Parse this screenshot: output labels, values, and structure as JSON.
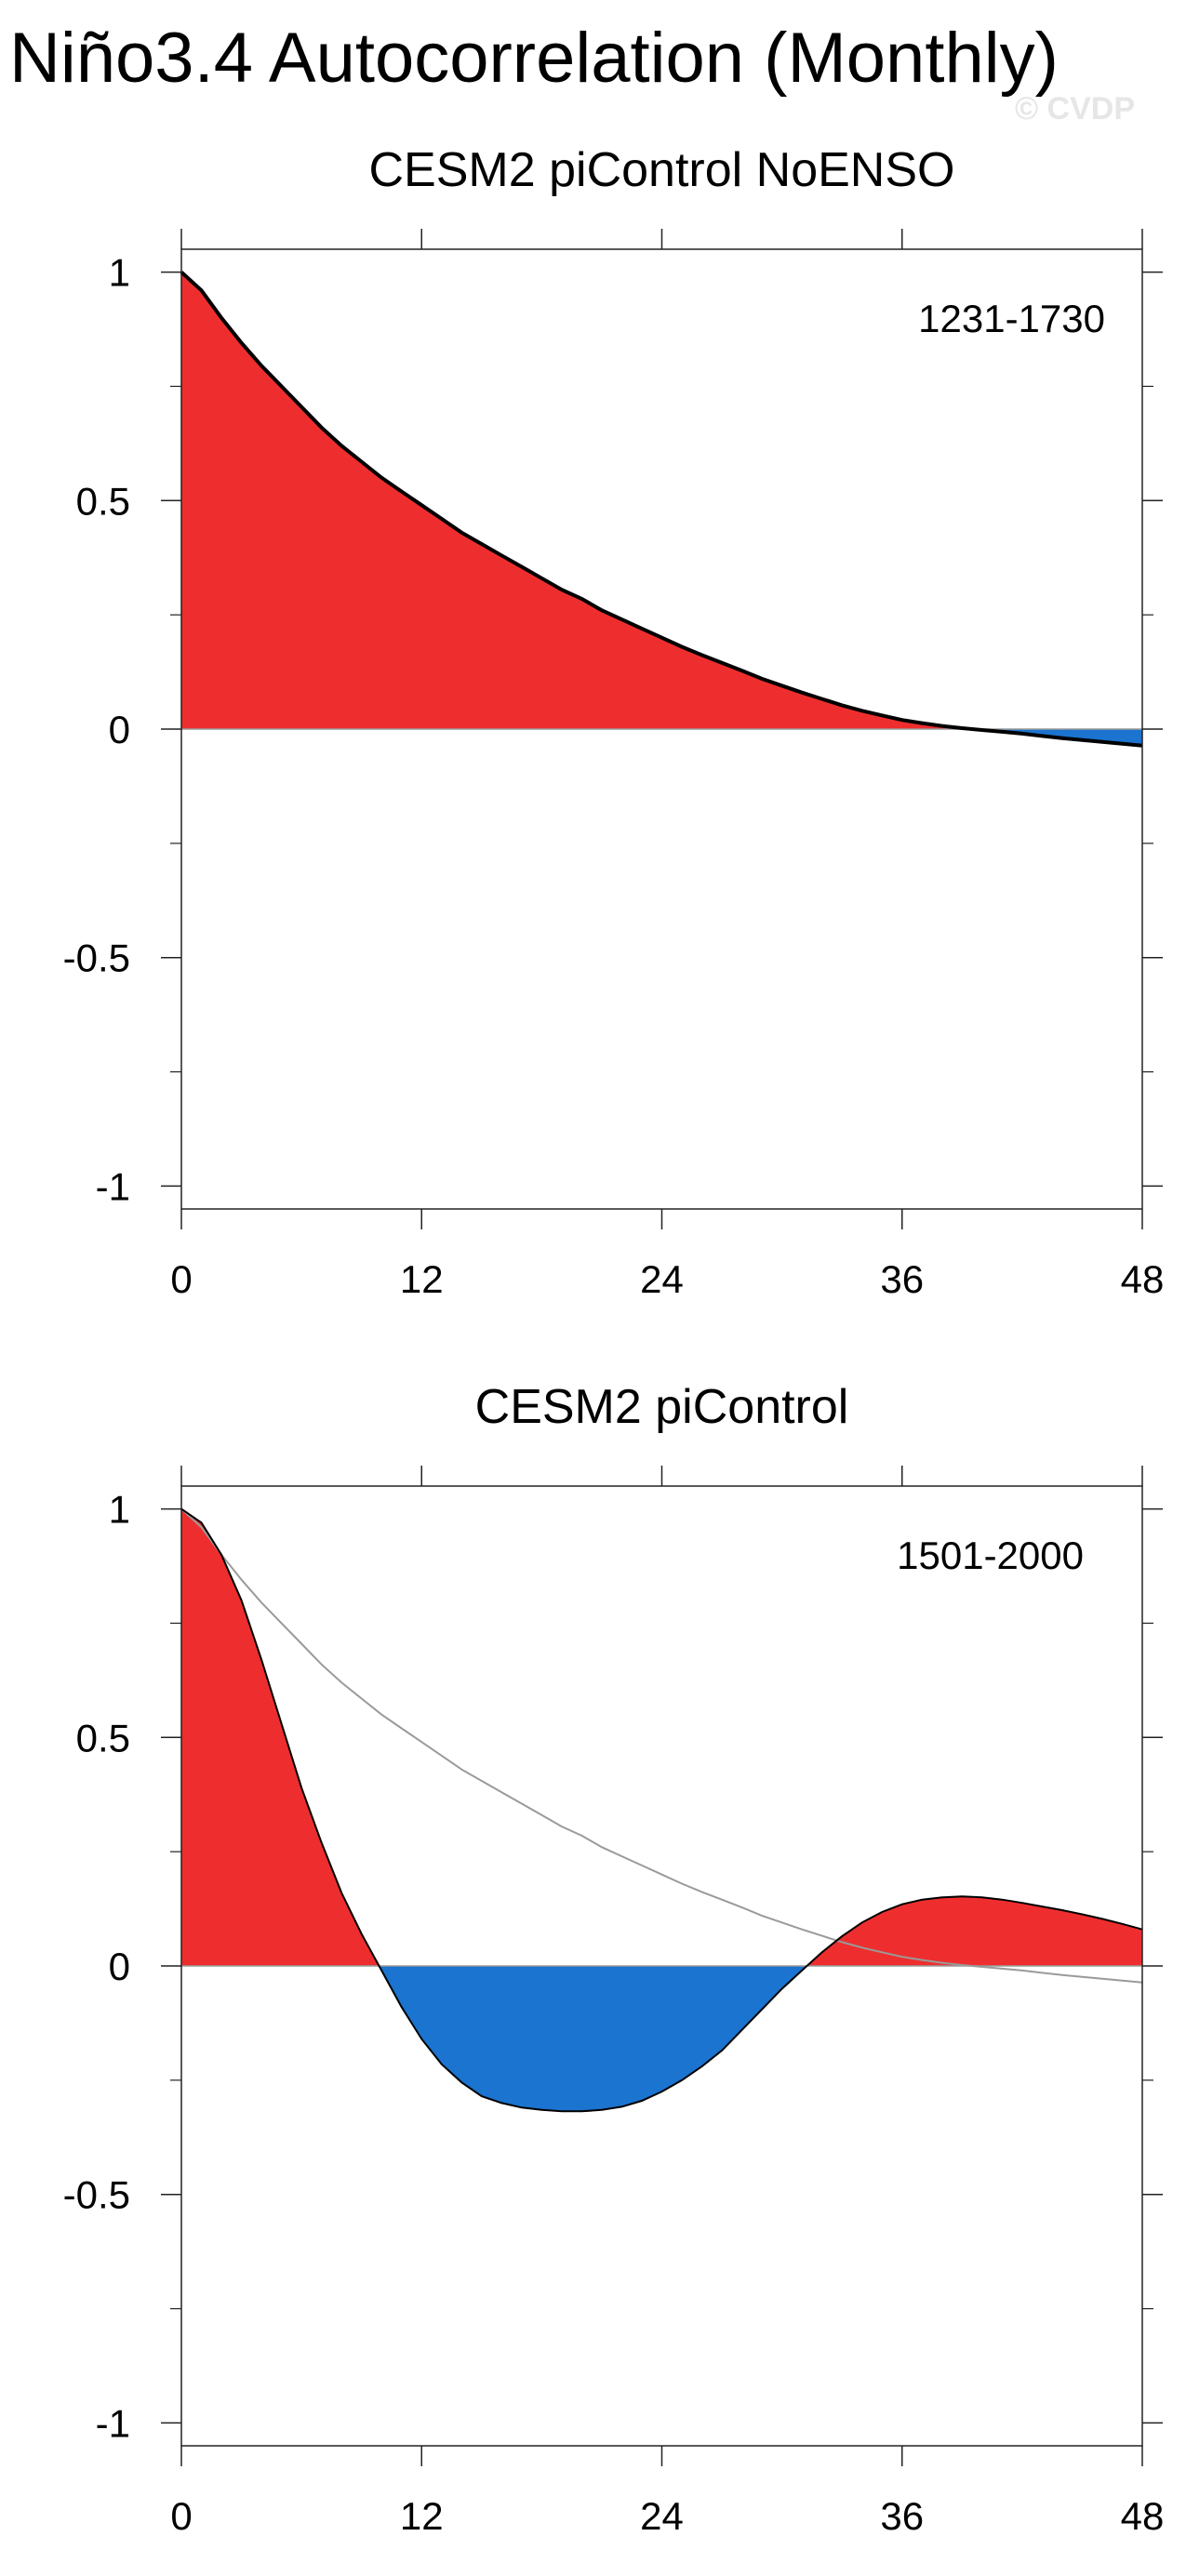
{
  "figure": {
    "title": "Niño3.4 Autocorrelation (Monthly)",
    "watermark": "© CVDP"
  },
  "colors": {
    "positive_fill": "#ee2e2e",
    "negative_fill": "#1b74cf",
    "reference_line": "#9a9a9a",
    "axis": "#000000"
  },
  "chart_data": [
    {
      "type": "area",
      "title": "CESM2 piControl NoENSO",
      "annotation": "1231-1730",
      "xlabel": "",
      "ylabel": "",
      "xlim": [
        0,
        48
      ],
      "ylim": [
        -1.05,
        1.05
      ],
      "xticks": [
        0,
        12,
        24,
        36,
        48
      ],
      "xtick_labels": [
        "0",
        "12",
        "24",
        "36",
        "48"
      ],
      "yticks": [
        -1,
        -0.5,
        0,
        0.5,
        1
      ],
      "ytick_labels": [
        "-1",
        "-0.5",
        "0",
        "0.5",
        "1"
      ],
      "grid": false,
      "fill_positive": true,
      "fill_negative": true,
      "x": [
        0,
        1,
        2,
        3,
        4,
        5,
        6,
        7,
        8,
        9,
        10,
        11,
        12,
        13,
        14,
        15,
        16,
        17,
        18,
        19,
        20,
        21,
        22,
        23,
        24,
        25,
        26,
        27,
        28,
        29,
        30,
        31,
        32,
        33,
        34,
        35,
        36,
        37,
        38,
        39,
        40,
        41,
        42,
        43,
        44,
        45,
        46,
        47,
        48
      ],
      "series": [
        {
          "values": [
            1.0,
            0.96,
            0.9,
            0.845,
            0.795,
            0.75,
            0.705,
            0.66,
            0.62,
            0.585,
            0.55,
            0.52,
            0.49,
            0.46,
            0.43,
            0.405,
            0.38,
            0.355,
            0.33,
            0.305,
            0.285,
            0.26,
            0.24,
            0.22,
            0.2,
            0.18,
            0.162,
            0.145,
            0.128,
            0.11,
            0.095,
            0.08,
            0.066,
            0.052,
            0.04,
            0.03,
            0.02,
            0.013,
            0.007,
            0.002,
            -0.002,
            -0.006,
            -0.01,
            -0.015,
            -0.02,
            -0.024,
            -0.028,
            -0.032,
            -0.036
          ]
        }
      ]
    },
    {
      "type": "area",
      "title": "CESM2 piControl",
      "annotation": "1501-2000",
      "xlabel": "",
      "ylabel": "",
      "xlim": [
        0,
        48
      ],
      "ylim": [
        -1.05,
        1.05
      ],
      "xticks": [
        0,
        12,
        24,
        36,
        48
      ],
      "xtick_labels": [
        "0",
        "12",
        "24",
        "36",
        "48"
      ],
      "yticks": [
        -1,
        -0.5,
        0,
        0.5,
        1
      ],
      "ytick_labels": [
        "-1",
        "-0.5",
        "0",
        "0.5",
        "1"
      ],
      "grid": false,
      "fill_positive": true,
      "fill_negative": true,
      "x": [
        0,
        1,
        2,
        3,
        4,
        5,
        6,
        7,
        8,
        9,
        10,
        11,
        12,
        13,
        14,
        15,
        16,
        17,
        18,
        19,
        20,
        21,
        22,
        23,
        24,
        25,
        26,
        27,
        28,
        29,
        30,
        31,
        32,
        33,
        34,
        35,
        36,
        37,
        38,
        39,
        40,
        41,
        42,
        43,
        44,
        45,
        46,
        47,
        48
      ],
      "series": [
        {
          "values": [
            1.0,
            0.97,
            0.9,
            0.8,
            0.67,
            0.53,
            0.39,
            0.27,
            0.16,
            0.07,
            -0.01,
            -0.09,
            -0.16,
            -0.215,
            -0.255,
            -0.285,
            -0.3,
            -0.31,
            -0.315,
            -0.318,
            -0.318,
            -0.315,
            -0.308,
            -0.295,
            -0.275,
            -0.25,
            -0.22,
            -0.185,
            -0.14,
            -0.095,
            -0.05,
            -0.01,
            0.03,
            0.065,
            0.095,
            0.118,
            0.135,
            0.145,
            0.15,
            0.152,
            0.15,
            0.145,
            0.138,
            0.13,
            0.122,
            0.113,
            0.103,
            0.092,
            0.08
          ]
        },
        {
          "values": [
            1.0,
            0.96,
            0.9,
            0.845,
            0.795,
            0.75,
            0.705,
            0.66,
            0.62,
            0.585,
            0.55,
            0.52,
            0.49,
            0.46,
            0.43,
            0.405,
            0.38,
            0.355,
            0.33,
            0.305,
            0.285,
            0.26,
            0.24,
            0.22,
            0.2,
            0.18,
            0.162,
            0.145,
            0.128,
            0.11,
            0.095,
            0.08,
            0.066,
            0.052,
            0.04,
            0.03,
            0.02,
            0.013,
            0.007,
            0.002,
            -0.002,
            -0.006,
            -0.01,
            -0.015,
            -0.02,
            -0.024,
            -0.028,
            -0.032,
            -0.036
          ]
        }
      ]
    }
  ]
}
